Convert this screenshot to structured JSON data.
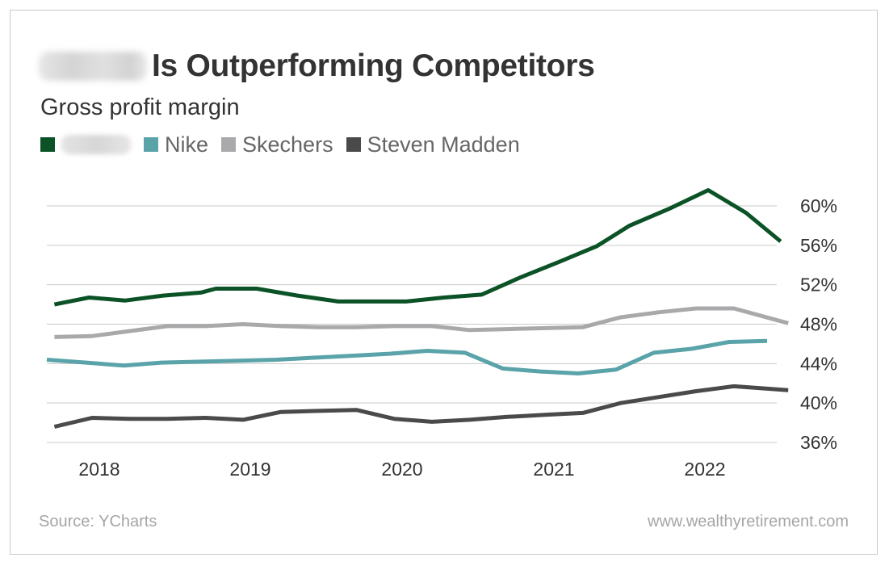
{
  "title": {
    "prefix_redacted": true,
    "text": "Is Outperforming Competitors"
  },
  "subtitle": "Gross profit margin",
  "source": "Source: YCharts",
  "website": "www.wealthyretirement.com",
  "colors": {
    "company": "#0b5226",
    "nike": "#5aa3a9",
    "skechers": "#a9a9ab",
    "steven_madden": "#4a4a4a",
    "grid": "#c9c9c9",
    "text": "#333333"
  },
  "chart_data": {
    "type": "line",
    "title": "Is Outperforming Competitors",
    "subtitle": "Gross profit margin",
    "x_ticks": [
      "2018",
      "2019",
      "2020",
      "2021",
      "2022"
    ],
    "x_range": [
      2017.62,
      2022.53
    ],
    "y_ticks": [
      "36%",
      "40%",
      "44%",
      "48%",
      "52%",
      "56%",
      "60%"
    ],
    "ylim": [
      36,
      61
    ],
    "y_axis_side": "right",
    "grid": "horizontal",
    "legend_position": "top-left",
    "series": [
      {
        "key": "company",
        "name": "",
        "name_redacted": true,
        "color": "#0b5226",
        "x": [
          2017.67,
          2017.9,
          2018.14,
          2018.39,
          2018.64,
          2018.74,
          2019.01,
          2019.28,
          2019.55,
          2019.79,
          2020.0,
          2020.25,
          2020.5,
          2020.75,
          2021.01,
          2021.26,
          2021.48,
          2021.74,
          2022.0,
          2022.25,
          2022.48
        ],
        "values": [
          50.0,
          50.7,
          50.4,
          50.9,
          51.2,
          51.6,
          51.6,
          50.9,
          50.3,
          50.3,
          50.3,
          50.7,
          51.0,
          52.7,
          54.3,
          55.9,
          58.0,
          59.7,
          61.6,
          59.3,
          56.4
        ]
      },
      {
        "key": "nike",
        "name": "Nike",
        "color": "#5aa3a9",
        "x": [
          2017.62,
          2017.88,
          2018.13,
          2018.38,
          2018.64,
          2018.89,
          2019.14,
          2019.39,
          2019.64,
          2019.89,
          2020.14,
          2020.39,
          2020.64,
          2020.89,
          2021.14,
          2021.39,
          2021.64,
          2021.89,
          2022.14,
          2022.39
        ],
        "values": [
          44.4,
          44.1,
          43.8,
          44.1,
          44.2,
          44.3,
          44.4,
          44.6,
          44.8,
          45.0,
          45.3,
          45.1,
          43.5,
          43.2,
          43.0,
          43.4,
          45.1,
          45.5,
          46.2,
          46.3
        ]
      },
      {
        "key": "skechers",
        "name": "Skechers",
        "color": "#a9a9ab",
        "x": [
          2017.67,
          2017.92,
          2018.17,
          2018.42,
          2018.67,
          2018.92,
          2019.17,
          2019.42,
          2019.67,
          2019.92,
          2020.17,
          2020.42,
          2020.67,
          2020.92,
          2021.17,
          2021.42,
          2021.67,
          2021.92,
          2022.17,
          2022.53
        ],
        "values": [
          46.7,
          46.8,
          47.3,
          47.8,
          47.8,
          48.0,
          47.8,
          47.7,
          47.7,
          47.8,
          47.8,
          47.4,
          47.5,
          47.6,
          47.7,
          48.7,
          49.2,
          49.6,
          49.6,
          48.1
        ]
      },
      {
        "key": "steven_madden",
        "name": "Steven Madden",
        "color": "#4a4a4a",
        "x": [
          2017.67,
          2017.92,
          2018.17,
          2018.42,
          2018.67,
          2018.92,
          2019.17,
          2019.42,
          2019.67,
          2019.92,
          2020.17,
          2020.42,
          2020.67,
          2020.92,
          2021.17,
          2021.42,
          2021.67,
          2021.92,
          2022.17,
          2022.53
        ],
        "values": [
          37.6,
          38.5,
          38.4,
          38.4,
          38.5,
          38.3,
          39.1,
          39.2,
          39.3,
          38.4,
          38.1,
          38.3,
          38.6,
          38.8,
          39.0,
          40.0,
          40.6,
          41.2,
          41.7,
          41.3
        ]
      }
    ]
  }
}
